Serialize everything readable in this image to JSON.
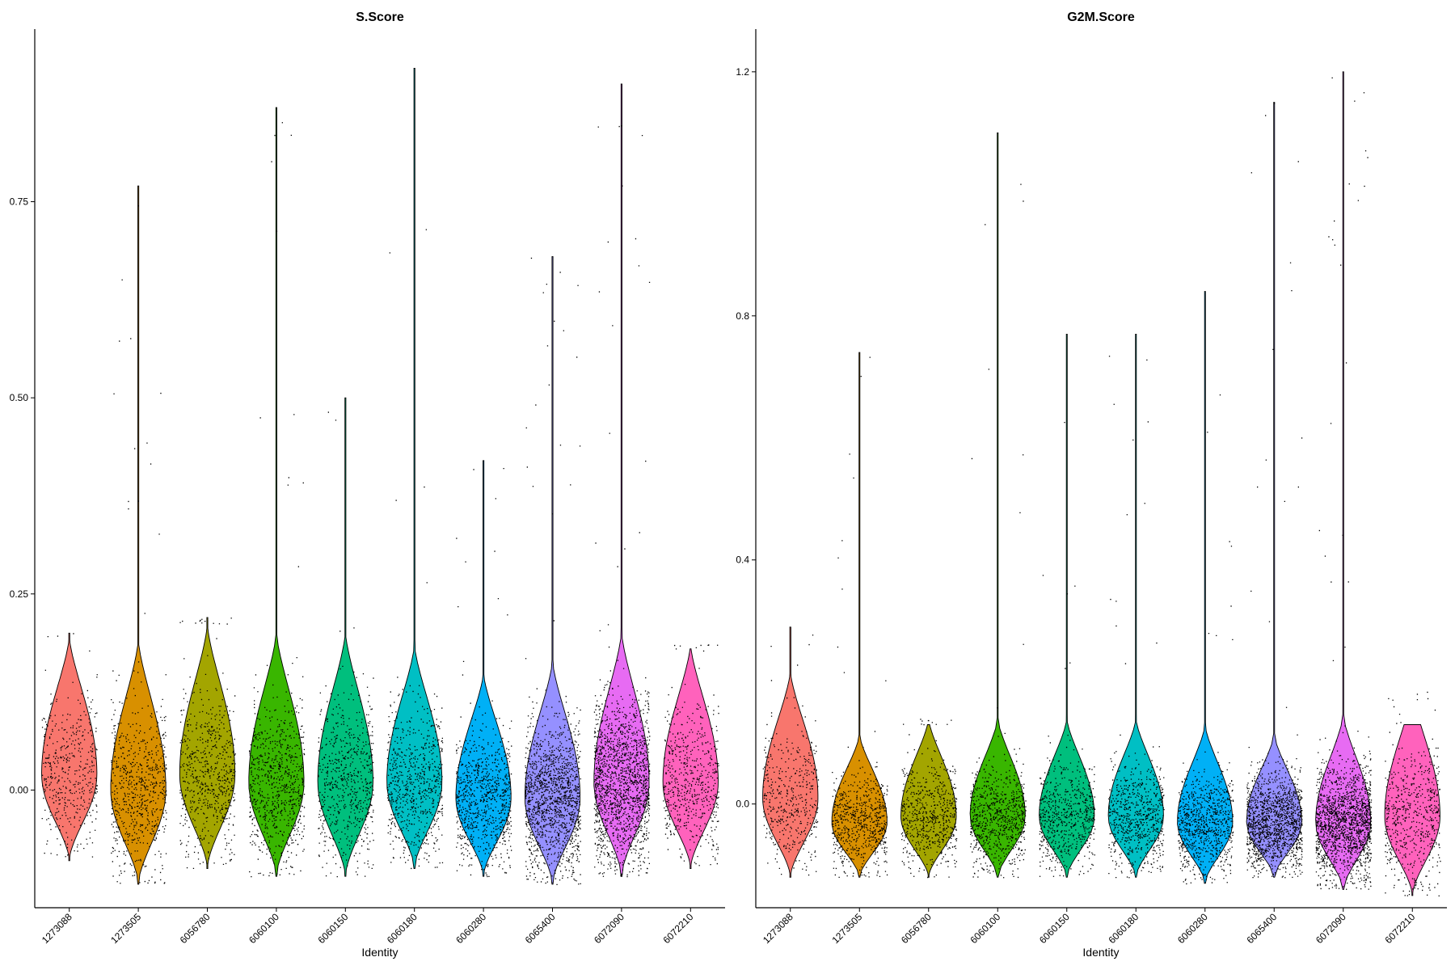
{
  "chart_data": [
    {
      "type": "violin",
      "title": "S.Score",
      "xlabel": "Identity",
      "ylabel": "",
      "categories": [
        "1273088",
        "1273505",
        "6056780",
        "6060100",
        "6060150",
        "6060180",
        "6060280",
        "6065400",
        "6072090",
        "6072210"
      ],
      "category_colors": [
        "#F8766D",
        "#D89000",
        "#A3A500",
        "#39B600",
        "#00BF7D",
        "#00BFC4",
        "#00B0F6",
        "#9590FF",
        "#E76BF3",
        "#FF62BC"
      ],
      "ylim": [
        -0.15,
        0.97
      ],
      "yticks": [
        0.0,
        0.25,
        0.5,
        0.75
      ],
      "ytick_labels": [
        "0.00",
        "0.25",
        "0.50",
        "0.75"
      ],
      "violins": [
        {
          "min": -0.09,
          "max": 0.2,
          "median": 0.02
        },
        {
          "min": -0.12,
          "max": 0.77,
          "median": 0.0
        },
        {
          "min": -0.1,
          "max": 0.22,
          "median": 0.02
        },
        {
          "min": -0.11,
          "max": 0.87,
          "median": 0.01
        },
        {
          "min": -0.11,
          "max": 0.5,
          "median": 0.01
        },
        {
          "min": -0.1,
          "max": 0.92,
          "median": 0.01
        },
        {
          "min": -0.11,
          "max": 0.42,
          "median": -0.01
        },
        {
          "min": -0.12,
          "max": 0.68,
          "median": -0.01
        },
        {
          "min": -0.11,
          "max": 0.9,
          "median": 0.01
        },
        {
          "min": -0.1,
          "max": 0.18,
          "median": 0.01
        }
      ],
      "points_per_category": [
        450,
        700,
        650,
        800,
        650,
        700,
        850,
        1500,
        1700,
        600
      ],
      "grid": false
    },
    {
      "type": "violin",
      "title": "G2M.Score",
      "xlabel": "Identity",
      "ylabel": "",
      "categories": [
        "1273088",
        "1273505",
        "6056780",
        "6060100",
        "6060150",
        "6060180",
        "6060280",
        "6065400",
        "6072090",
        "6072210"
      ],
      "category_colors": [
        "#F8766D",
        "#D89000",
        "#A3A500",
        "#39B600",
        "#00BF7D",
        "#00BFC4",
        "#00B0F6",
        "#9590FF",
        "#E76BF3",
        "#FF62BC"
      ],
      "ylim": [
        -0.17,
        1.27
      ],
      "yticks": [
        0.0,
        0.4,
        0.8,
        1.2
      ],
      "ytick_labels": [
        "0.0",
        "0.4",
        "0.8",
        "1.2"
      ],
      "violins": [
        {
          "min": -0.12,
          "max": 0.29,
          "median": 0.01
        },
        {
          "min": -0.12,
          "max": 0.74,
          "median": -0.03
        },
        {
          "min": -0.12,
          "max": 0.13,
          "median": -0.02
        },
        {
          "min": -0.12,
          "max": 1.1,
          "median": -0.02
        },
        {
          "min": -0.12,
          "max": 0.77,
          "median": -0.02
        },
        {
          "min": -0.12,
          "max": 0.77,
          "median": -0.02
        },
        {
          "min": -0.13,
          "max": 0.84,
          "median": -0.03
        },
        {
          "min": -0.12,
          "max": 1.15,
          "median": -0.03
        },
        {
          "min": -0.14,
          "max": 1.2,
          "median": -0.03
        },
        {
          "min": -0.15,
          "max": 0.13,
          "median": -0.02
        }
      ],
      "points_per_category": [
        450,
        700,
        650,
        800,
        650,
        700,
        850,
        1500,
        1700,
        600
      ],
      "grid": false
    }
  ]
}
